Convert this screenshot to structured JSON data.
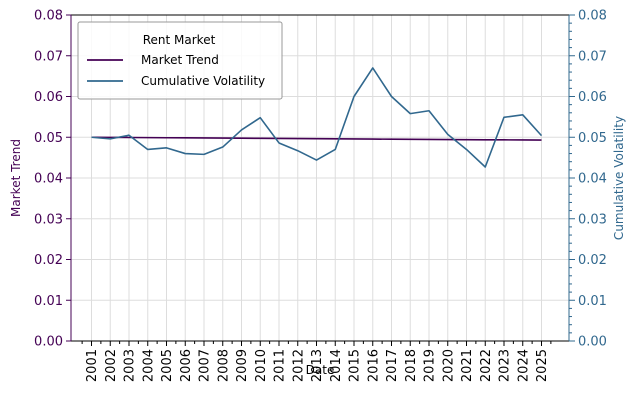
{
  "chart_data": {
    "type": "line",
    "xlabel": "Date",
    "ylabel_left": "Market Trend",
    "ylabel_right": "Cumulative Volatility",
    "x": [
      "2001",
      "2002",
      "2003",
      "2004",
      "2005",
      "2006",
      "2007",
      "2008",
      "2009",
      "2010",
      "2011",
      "2012",
      "2013",
      "2014",
      "2015",
      "2016",
      "2017",
      "2018",
      "2019",
      "2020",
      "2021",
      "2022",
      "2023",
      "2024",
      "2025"
    ],
    "ylim_left": [
      0,
      0.08
    ],
    "ylim_right": [
      0,
      0.08
    ],
    "yticks": [
      "0.00",
      "0.01",
      "0.02",
      "0.03",
      "0.04",
      "0.05",
      "0.06",
      "0.07",
      "0.08"
    ],
    "grid": true,
    "legend": {
      "title": "Rent Market",
      "placement": "top-left"
    },
    "series": [
      {
        "name": "Market Trend",
        "axis": "left",
        "color": "#440154",
        "values": [
          0.05,
          0.04997,
          0.04994,
          0.04991,
          0.04988,
          0.04985,
          0.04982,
          0.04979,
          0.04976,
          0.04973,
          0.0497,
          0.04967,
          0.04964,
          0.04961,
          0.04958,
          0.04955,
          0.04952,
          0.04949,
          0.04946,
          0.04943,
          0.0494,
          0.04938,
          0.04936,
          0.04934,
          0.04932
        ]
      },
      {
        "name": "Cumulative Volatility",
        "axis": "right",
        "color": "#31688e",
        "values": [
          0.05,
          0.0496,
          0.0505,
          0.047,
          0.0474,
          0.046,
          0.0458,
          0.0476,
          0.0518,
          0.0548,
          0.0486,
          0.0467,
          0.0444,
          0.047,
          0.06,
          0.067,
          0.06,
          0.0558,
          0.0565,
          0.0507,
          0.047,
          0.0427,
          0.0549,
          0.0555,
          0.0504
        ]
      }
    ]
  }
}
